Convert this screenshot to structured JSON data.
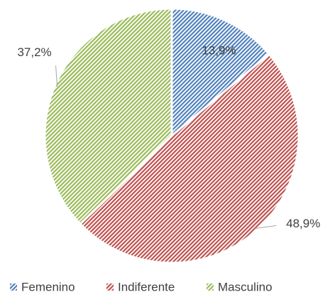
{
  "chart_data": {
    "type": "pie",
    "categories": [
      "Femenino",
      "Indiferente",
      "Masculino"
    ],
    "values": [
      13.9,
      48.9,
      37.2
    ],
    "value_labels": [
      "13,9%",
      "48,9%",
      "37,2%"
    ],
    "colors": [
      "#4f81bd",
      "#c0504d",
      "#9bbb59"
    ],
    "legend": "bottom"
  }
}
